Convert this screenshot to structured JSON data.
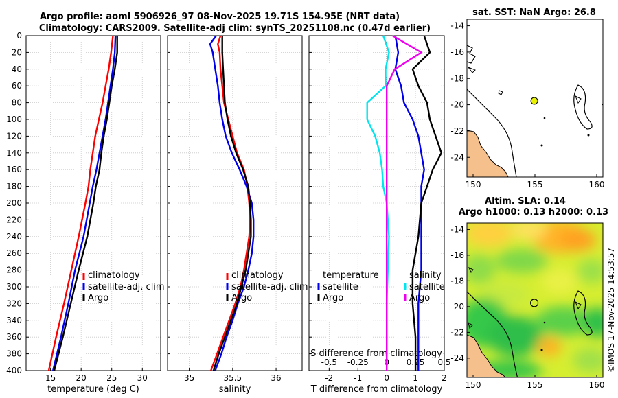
{
  "title": {
    "line1": "Argo profile: aoml 5906926_97 08-Nov-2025 19.71S 154.95E (NRT data)",
    "line2": "Climatology: CARS2009. Satellite-adj clim: synTS_20251108.nc (0.47d earlier)"
  },
  "watermark": "©IMOS 17-Nov-2025 14:53:57",
  "colors": {
    "climatology": "#ff0000",
    "satellite": "#0000ee",
    "argo": "#000000",
    "temp_diff": "#00e5ee",
    "sal_diff": "#ee00ee",
    "land": "#f5c08c"
  },
  "depth_axis": {
    "ylim": [
      0,
      400
    ],
    "ticks": [
      "0",
      "20",
      "40",
      "60",
      "80",
      "100",
      "120",
      "140",
      "160",
      "180",
      "200",
      "220",
      "240",
      "260",
      "280",
      "300",
      "320",
      "340",
      "360",
      "380",
      "400"
    ]
  },
  "chart_data": [
    {
      "id": "temperature",
      "type": "line",
      "xlabel": "temperature (deg C)",
      "xlim": [
        11,
        33
      ],
      "xticks": [
        "15",
        "20",
        "25",
        "30"
      ],
      "legend": [
        "climatology",
        "satellite-adj. clim",
        "Argo"
      ],
      "depth": [
        0,
        20,
        40,
        60,
        80,
        100,
        120,
        140,
        160,
        180,
        200,
        240,
        280,
        320,
        360,
        400
      ],
      "series": [
        {
          "name": "climatology",
          "values": [
            25.2,
            24.9,
            24.5,
            24.0,
            23.5,
            22.9,
            22.3,
            21.9,
            21.5,
            21.2,
            20.7,
            19.6,
            18.4,
            17.2,
            15.9,
            14.7
          ]
        },
        {
          "name": "satellite-adj. clim",
          "values": [
            25.6,
            25.5,
            25.2,
            24.8,
            24.4,
            24.0,
            23.5,
            23.0,
            22.5,
            21.9,
            21.4,
            20.4,
            19.0,
            17.9,
            16.7,
            15.4
          ]
        },
        {
          "name": "Argo",
          "values": [
            25.9,
            25.9,
            25.5,
            25.0,
            24.6,
            24.2,
            23.7,
            23.3,
            23.0,
            22.4,
            22.0,
            21.0,
            19.6,
            18.3,
            17.0,
            15.6
          ]
        }
      ]
    },
    {
      "id": "salinity",
      "type": "line",
      "xlabel": "salinity",
      "xlim": [
        34.75,
        36.3
      ],
      "xticks": [
        "35",
        "35.5",
        "36"
      ],
      "legend": [
        "climatology",
        "satellite-adj. clim",
        "Argo"
      ],
      "depth": [
        0,
        10,
        20,
        40,
        60,
        80,
        100,
        120,
        140,
        160,
        180,
        200,
        220,
        240,
        260,
        280,
        300,
        320,
        340,
        360,
        380,
        400
      ],
      "series": [
        {
          "name": "climatology",
          "values": [
            35.36,
            35.33,
            35.35,
            35.36,
            35.38,
            35.4,
            35.45,
            35.5,
            35.55,
            35.63,
            35.67,
            35.69,
            35.7,
            35.69,
            35.66,
            35.63,
            35.59,
            35.53,
            35.46,
            35.39,
            35.32,
            35.25
          ]
        },
        {
          "name": "satellite-adj. clim",
          "values": [
            35.31,
            35.24,
            35.27,
            35.3,
            35.33,
            35.35,
            35.38,
            35.42,
            35.49,
            35.58,
            35.66,
            35.72,
            35.74,
            35.74,
            35.72,
            35.68,
            35.63,
            35.56,
            35.5,
            35.43,
            35.37,
            35.3
          ]
        },
        {
          "name": "Argo",
          "values": [
            35.38,
            35.38,
            35.38,
            35.39,
            35.4,
            35.41,
            35.44,
            35.48,
            35.54,
            35.62,
            35.68,
            35.7,
            35.71,
            35.71,
            35.68,
            35.65,
            35.6,
            35.55,
            35.48,
            35.41,
            35.34,
            35.28
          ]
        }
      ]
    },
    {
      "id": "difference",
      "type": "line",
      "xlabel": "T difference from climatology",
      "xlabel_top": "S difference from climatology",
      "xlim": [
        -2.7,
        2.0
      ],
      "xticks": [
        "-2",
        "-1",
        "0",
        "1",
        "2"
      ],
      "sticks": [
        "-0.5",
        "-0.25",
        "0",
        "0.25",
        "0.5"
      ],
      "legend_left": [
        "temperature",
        "satellite",
        "Argo"
      ],
      "legend_right": [
        "salinity",
        "satellite",
        "Argo"
      ],
      "depth": [
        0,
        20,
        40,
        60,
        80,
        100,
        120,
        140,
        160,
        180,
        200,
        240,
        280,
        320,
        360,
        400
      ],
      "series": [
        {
          "name": "T satellite",
          "values": [
            0.3,
            0.4,
            0.3,
            0.5,
            0.6,
            0.9,
            1.1,
            1.2,
            1.3,
            1.2,
            1.2,
            1.2,
            1.2,
            1.1,
            1.1,
            1.1
          ]
        },
        {
          "name": "T Argo",
          "values": [
            1.3,
            1.5,
            0.9,
            1.1,
            1.4,
            1.5,
            1.7,
            1.9,
            1.6,
            1.4,
            1.2,
            1.1,
            0.9,
            0.9,
            1.0,
            1.0
          ]
        },
        {
          "name": "S satellite",
          "values": [
            -0.03,
            0.02,
            -0.01,
            -0.01,
            -0.17,
            -0.17,
            -0.1,
            -0.06,
            -0.04,
            -0.03,
            0.0,
            0.02,
            0.01,
            0.0,
            0.0,
            0.0
          ]
        },
        {
          "name": "S Argo",
          "values": [
            0.05,
            0.3,
            0.07,
            0.0,
            0.0,
            0.0,
            0.0,
            0.0,
            0.0,
            0.0,
            0.0,
            0.0,
            0.0,
            0.0,
            0.0,
            0.0
          ]
        }
      ]
    }
  ],
  "maps": [
    {
      "id": "sst",
      "title": "sat. SST: NaN Argo: 26.8",
      "xlim": [
        149.5,
        160.5
      ],
      "ylim": [
        -25.5,
        -13.5
      ],
      "xticks": [
        "150",
        "155",
        "160"
      ],
      "yticks": [
        "-14",
        "-16",
        "-18",
        "-20",
        "-22",
        "-24"
      ],
      "float": {
        "lon": 154.95,
        "lat": -19.71
      }
    },
    {
      "id": "sla",
      "title1": "Altim. SLA: 0.14",
      "title2": "Argo h1000: 0.13 h2000: 0.13",
      "xlim": [
        149.5,
        160.5
      ],
      "ylim": [
        -25.5,
        -13.5
      ],
      "xticks": [
        "150",
        "155",
        "160"
      ],
      "yticks": [
        "-14",
        "-16",
        "-18",
        "-20",
        "-22",
        "-24"
      ],
      "float": {
        "lon": 154.95,
        "lat": -19.71
      }
    }
  ]
}
